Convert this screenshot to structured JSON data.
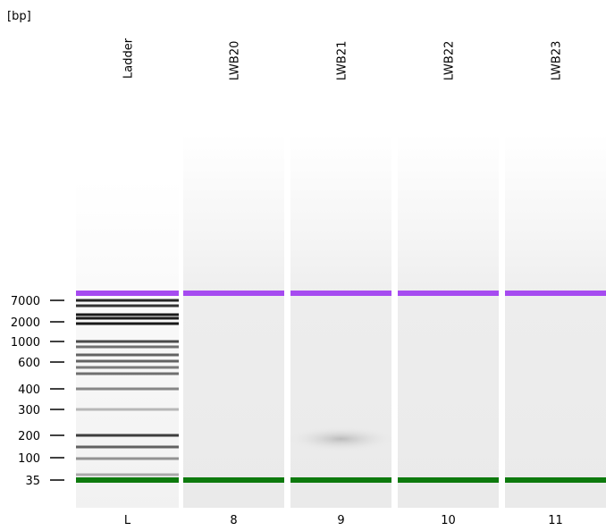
{
  "axis_unit": "[bp]",
  "ticks": [
    "7000",
    "2000",
    "1000",
    "600",
    "400",
    "300",
    "200",
    "100",
    "35"
  ],
  "lanes": [
    {
      "name": "Ladder",
      "number": "L"
    },
    {
      "name": "LWB20",
      "number": "8"
    },
    {
      "name": "LWB21",
      "number": "9"
    },
    {
      "name": "LWB22",
      "number": "10"
    },
    {
      "name": "LWB23",
      "number": "11"
    }
  ]
}
